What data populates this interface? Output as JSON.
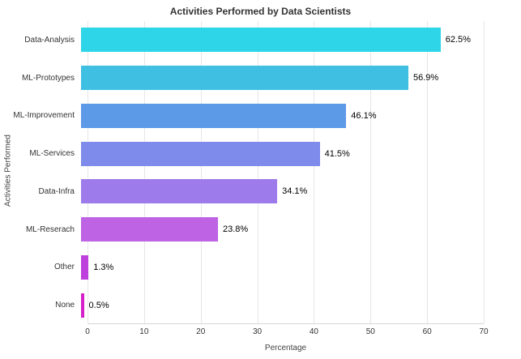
{
  "chart_data": {
    "type": "bar",
    "orientation": "horizontal",
    "title": "Activities Performed by Data Scientists",
    "xlabel": "Percentage",
    "ylabel": "Activities Performed",
    "xlim": [
      0,
      70
    ],
    "xticks": [
      0,
      10,
      20,
      30,
      40,
      50,
      60,
      70
    ],
    "grid": true,
    "background_color": "#ffffff",
    "gridline_color": "#e6e6e6",
    "categories": [
      "Data-Analysis",
      "ML-Prototypes",
      "ML-Improvement",
      "ML-Services",
      "Data-Infra",
      "ML-Reserach",
      "Other",
      "None"
    ],
    "values": [
      62.5,
      56.9,
      46.1,
      41.5,
      34.1,
      23.8,
      1.3,
      0.5
    ],
    "value_labels": [
      "62.5%",
      "56.9%",
      "46.1%",
      "41.5%",
      "34.1%",
      "23.8%",
      "1.3%",
      "0.5%"
    ],
    "bar_colors": [
      "#2ed5e8",
      "#3fbfe2",
      "#5c9ae8",
      "#7e8bea",
      "#9e7bea",
      "#bd63e3",
      "#bd3fdc",
      "#d420c6"
    ]
  }
}
